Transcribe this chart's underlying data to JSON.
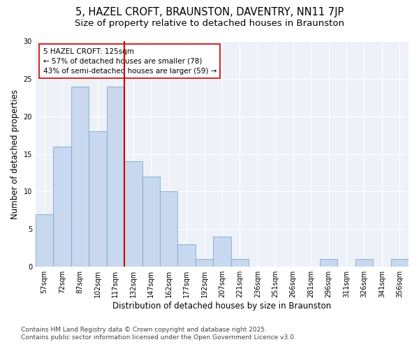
{
  "title_line1": "5, HAZEL CROFT, BRAUNSTON, DAVENTRY, NN11 7JP",
  "title_line2": "Size of property relative to detached houses in Braunston",
  "xlabel": "Distribution of detached houses by size in Braunston",
  "ylabel": "Number of detached properties",
  "categories": [
    "57sqm",
    "72sqm",
    "87sqm",
    "102sqm",
    "117sqm",
    "132sqm",
    "147sqm",
    "162sqm",
    "177sqm",
    "192sqm",
    "207sqm",
    "221sqm",
    "236sqm",
    "251sqm",
    "266sqm",
    "281sqm",
    "296sqm",
    "311sqm",
    "326sqm",
    "341sqm",
    "356sqm"
  ],
  "values": [
    7,
    16,
    24,
    18,
    24,
    14,
    12,
    10,
    3,
    1,
    4,
    1,
    0,
    0,
    0,
    0,
    1,
    0,
    1,
    0,
    1
  ],
  "bar_color": "#c8d8ee",
  "bar_edge_color": "#7aaace",
  "vline_color": "#cc0000",
  "vline_x_index": 4,
  "annotation_text": "5 HAZEL CROFT: 125sqm\n← 57% of detached houses are smaller (78)\n43% of semi-detached houses are larger (59) →",
  "annotation_box_edge_color": "#cc0000",
  "ylim": [
    0,
    30
  ],
  "yticks": [
    0,
    5,
    10,
    15,
    20,
    25,
    30
  ],
  "background_color": "#ffffff",
  "plot_bg_color": "#eef2f8",
  "footer_line1": "Contains HM Land Registry data © Crown copyright and database right 2025.",
  "footer_line2": "Contains public sector information licensed under the Open Government Licence v3.0.",
  "title_fontsize": 10.5,
  "subtitle_fontsize": 9.5,
  "axis_label_fontsize": 8.5,
  "tick_fontsize": 7,
  "annotation_fontsize": 7.5,
  "footer_fontsize": 6.5
}
